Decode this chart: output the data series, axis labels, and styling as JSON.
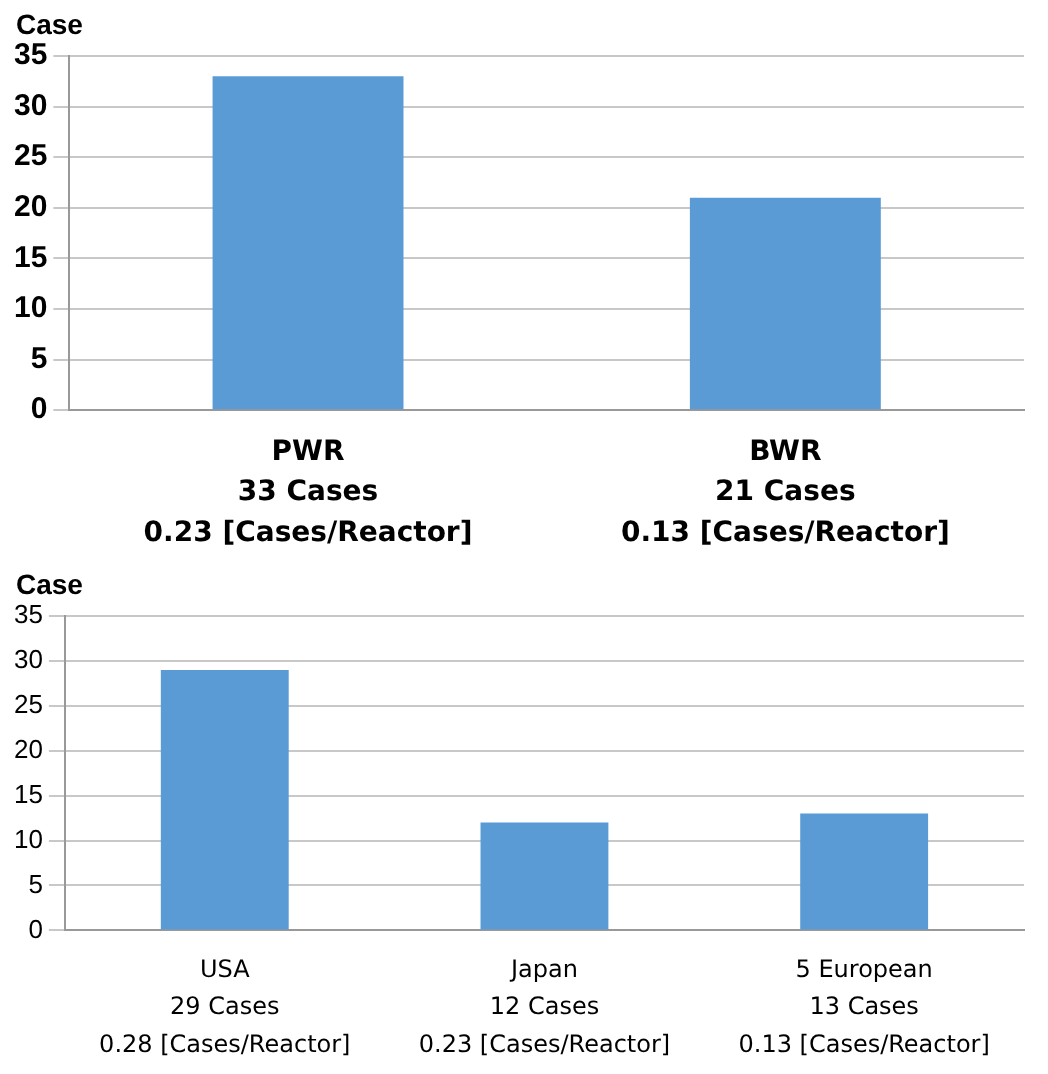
{
  "chart_data": [
    {
      "type": "bar",
      "ylabel": "Case",
      "categories": [
        "PWR\n33 Cases\n0.23 [Cases/Reactor]",
        "BWR\n21 Cases\n0.13 [Cases/Reactor]"
      ],
      "values": [
        33,
        21
      ],
      "color": "#5b9bd5",
      "ylim": [
        0,
        35
      ],
      "yticks": [
        0,
        5,
        10,
        15,
        20,
        25,
        30,
        35
      ],
      "grid": "y",
      "legend": false
    },
    {
      "type": "bar",
      "ylabel": "Case",
      "categories": [
        "USA\n29 Cases\n0.28 [Cases/Reactor]",
        "Japan\n12 Cases\n0.23 [Cases/Reactor]",
        "5 European\n13 Cases\n0.13 [Cases/Reactor]"
      ],
      "values": [
        29,
        12,
        13
      ],
      "color": "#5b9bd5",
      "ylim": [
        0,
        35
      ],
      "yticks": [
        0,
        5,
        10,
        15,
        20,
        25,
        30,
        35
      ],
      "grid": "y",
      "legend": false
    }
  ]
}
